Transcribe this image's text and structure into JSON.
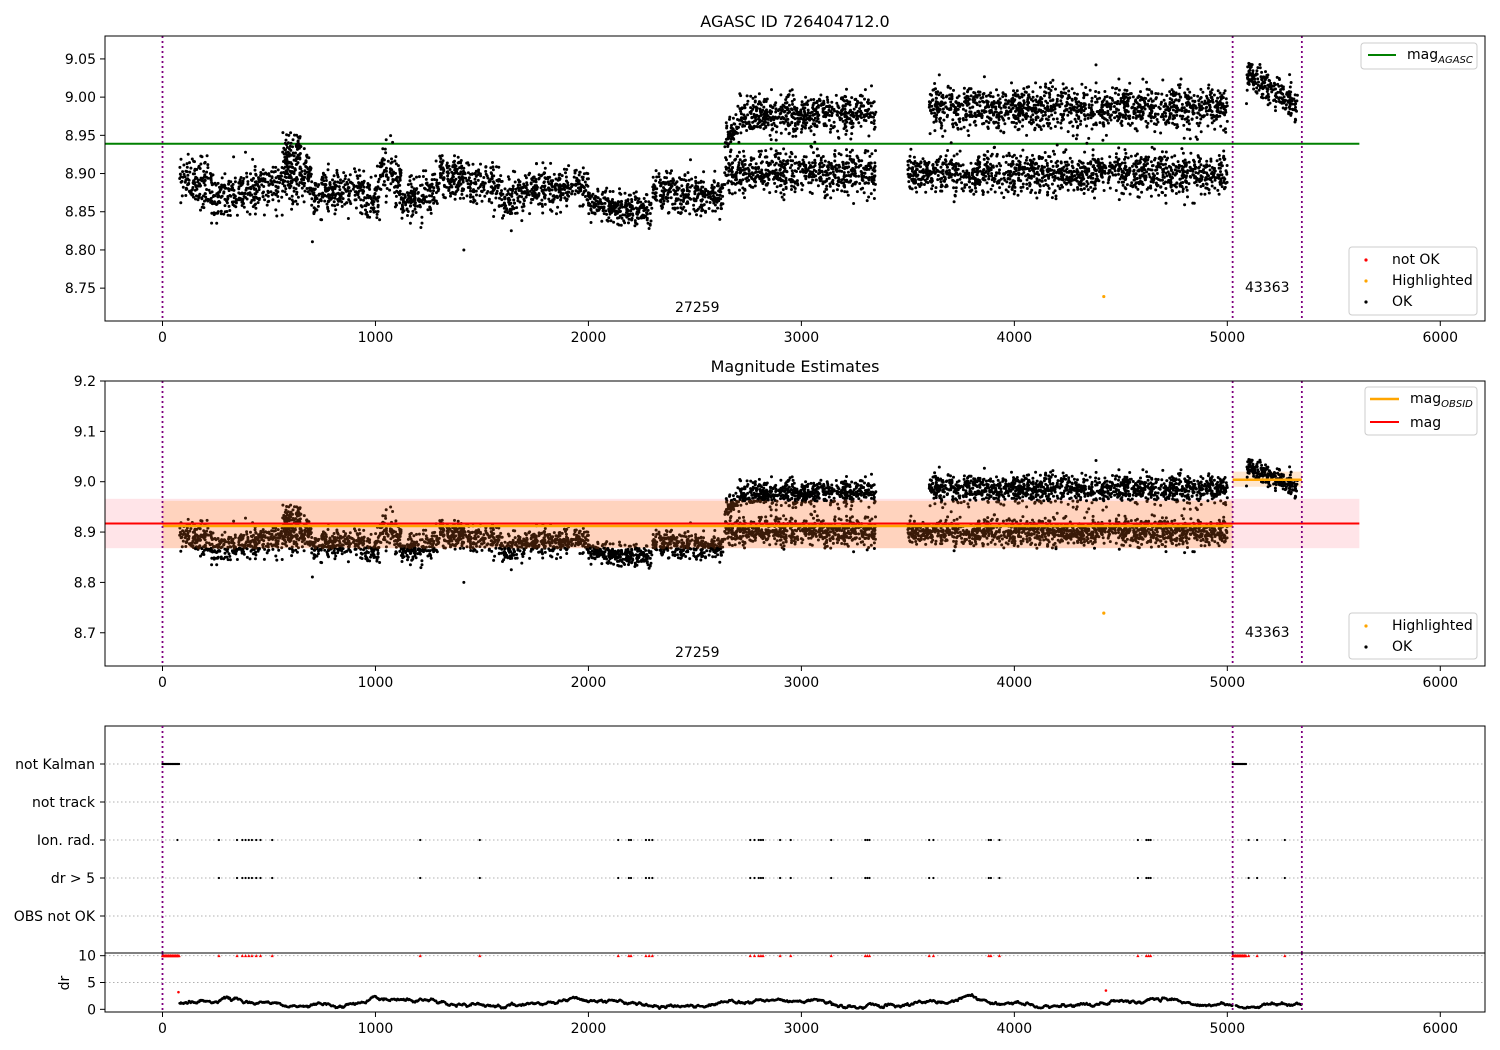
{
  "chart_data": [
    {
      "type": "scatter",
      "title": "AGASC ID 726404712.0",
      "xlim": [
        -270,
        6210
      ],
      "ylim": [
        8.707,
        9.08
      ],
      "xticks": [
        0,
        1000,
        2000,
        3000,
        4000,
        5000,
        6000
      ],
      "yticks": [
        8.75,
        8.8,
        8.85,
        8.9,
        8.95,
        9.0,
        9.05
      ],
      "ytick_labels": [
        "8.75",
        "8.80",
        "8.85",
        "8.90",
        "8.95",
        "9.00",
        "9.05"
      ],
      "grid": false,
      "legend_lines": {
        "placement": "top-right",
        "items": [
          {
            "label": "mag",
            "sub": "AGASC",
            "color": "#008000"
          }
        ]
      },
      "legend_points": {
        "placement": "bottom-right",
        "items": [
          {
            "label": "not OK",
            "color": "#ff0000"
          },
          {
            "label": "Highlighted",
            "color": "#ffa500"
          },
          {
            "label": "OK",
            "color": "#000000"
          }
        ]
      },
      "hlines": [
        {
          "name": "mag_AGASC",
          "y": 8.939,
          "x": [
            -270,
            5620
          ],
          "color": "#008000"
        }
      ],
      "vlines": [
        0,
        5025,
        5350
      ],
      "obs_labels": [
        {
          "text": "27259",
          "x": 2500,
          "y": 8.72
        },
        {
          "text": "43363",
          "x": 5185,
          "y": 8.747
        }
      ],
      "series": [
        {
          "kind": "ok",
          "segments": [
            {
              "x": [
                80,
                230
              ],
              "y": [
                8.9,
                8.88
              ],
              "sd": 0.017
            },
            {
              "x": [
                230,
                450
              ],
              "y": [
                8.87,
                8.88
              ],
              "sd": 0.013
            },
            {
              "x": [
                450,
                700
              ],
              "y": [
                8.88,
                8.9
              ],
              "sd": 0.015
            },
            {
              "x": [
                560,
                650
              ],
              "y": [
                8.92,
                8.93
              ],
              "sd": 0.012
            },
            {
              "x": [
                700,
                950
              ],
              "y": [
                8.87,
                8.88
              ],
              "sd": 0.014
            },
            {
              "x": [
                950,
                1020
              ],
              "y": [
                8.86,
                8.87
              ],
              "sd": 0.012
            },
            {
              "x": [
                1020,
                1120
              ],
              "y": [
                8.91,
                8.89
              ],
              "sd": 0.015
            },
            {
              "x": [
                1120,
                1300
              ],
              "y": [
                8.86,
                8.88
              ],
              "sd": 0.013
            },
            {
              "x": [
                1300,
                1600
              ],
              "y": [
                8.9,
                8.88
              ],
              "sd": 0.013
            },
            {
              "x": [
                1600,
                1750
              ],
              "y": [
                8.86,
                8.89
              ],
              "sd": 0.013
            },
            {
              "x": [
                1750,
                2000
              ],
              "y": [
                8.88,
                8.88
              ],
              "sd": 0.012
            },
            {
              "x": [
                2000,
                2300
              ],
              "y": [
                8.86,
                8.85
              ],
              "sd": 0.01
            },
            {
              "x": [
                2300,
                2640
              ],
              "y": [
                8.88,
                8.87
              ],
              "sd": 0.012
            },
            {
              "x": [
                2640,
                3350
              ],
              "y": [
                8.9,
                8.9
              ],
              "sd": 0.012
            },
            {
              "x": [
                2640,
                2700
              ],
              "y": [
                8.95,
                8.96
              ],
              "sd": 0.008
            },
            {
              "x": [
                2700,
                3350
              ],
              "y": [
                8.975,
                8.98
              ],
              "sd": 0.012
            },
            {
              "x": [
                3500,
                5000
              ],
              "y": [
                8.9,
                8.9
              ],
              "sd": 0.012
            },
            {
              "x": [
                3600,
                5000
              ],
              "y": [
                8.985,
                8.985
              ],
              "sd": 0.013
            },
            {
              "x": [
                5090,
                5330
              ],
              "y": [
                9.03,
                8.99
              ],
              "sd": 0.01
            }
          ]
        },
        {
          "kind": "isolated",
          "points": [
            {
              "x": 1415,
              "y": 8.8,
              "color": "#000000"
            }
          ]
        },
        {
          "kind": "highlighted",
          "points": [
            {
              "x": 4420,
              "y": 8.739,
              "color": "#ffa500"
            }
          ]
        }
      ]
    },
    {
      "type": "scatter",
      "title": "Magnitude Estimates",
      "xlim": [
        -270,
        6210
      ],
      "ylim": [
        8.634,
        9.2
      ],
      "xticks": [
        0,
        1000,
        2000,
        3000,
        4000,
        5000,
        6000
      ],
      "yticks": [
        8.7,
        8.8,
        8.9,
        9.0,
        9.1,
        9.2
      ],
      "ytick_labels": [
        "8.7",
        "8.8",
        "8.9",
        "9.0",
        "9.1",
        "9.2"
      ],
      "grid": false,
      "legend_lines": {
        "placement": "top-right",
        "items": [
          {
            "label": "mag",
            "sub": "OBSID",
            "color": "#ffa500"
          },
          {
            "label": "mag",
            "sub": "",
            "color": "#ff0000"
          }
        ]
      },
      "legend_points": {
        "placement": "bottom-right",
        "items": [
          {
            "label": "Highlighted",
            "color": "#ffa500"
          },
          {
            "label": "OK",
            "color": "#000000"
          }
        ]
      },
      "bands": [
        {
          "x": [
            -270,
            5620
          ],
          "y": [
            8.868,
            8.966
          ],
          "color": "#ff7a8a",
          "opacity": 0.2
        },
        {
          "x": [
            0,
            5025
          ],
          "y": [
            8.868,
            8.962
          ],
          "color": "#ffa040",
          "opacity": 0.25
        },
        {
          "x": [
            5025,
            5350
          ],
          "y": [
            8.99,
            9.02
          ],
          "color": "#ffa040",
          "opacity": 0.25
        }
      ],
      "hlines": [
        {
          "name": "mag",
          "y": 8.917,
          "x": [
            -270,
            5620
          ],
          "color": "#ff0000"
        },
        {
          "name": "mag_OBSID_1",
          "y": 8.912,
          "x": [
            0,
            5025
          ],
          "color": "#ffa500"
        },
        {
          "name": "mag_OBSID_2",
          "y": 9.004,
          "x": [
            5025,
            5350
          ],
          "color": "#ffa500"
        }
      ],
      "vlines": [
        0,
        5025,
        5350
      ],
      "obs_labels": [
        {
          "text": "27259",
          "x": 2500,
          "y": 8.654
        },
        {
          "text": "43363",
          "x": 5185,
          "y": 8.694
        }
      ],
      "series_from": 0
    },
    {
      "type": "scatter",
      "title": "",
      "xlim": [
        -270,
        6210
      ],
      "flags": [
        "not Kalman",
        "not track",
        "Ion. rad.",
        "dr > 5",
        "OBS not OK"
      ],
      "flag_points": {
        "not Kalman": [
          [
            0,
            80
          ],
          [
            5025,
            5090
          ]
        ],
        "not track": [],
        "Ion. rad.": [
          70,
          265,
          350,
          375,
          390,
          405,
          420,
          440,
          460,
          515,
          1210,
          1490,
          2140,
          2190,
          2200,
          2270,
          2285,
          2300,
          2760,
          2780,
          2800,
          2810,
          2820,
          2900,
          2950,
          3140,
          3300,
          3310,
          3320,
          3600,
          3620,
          3880,
          3890,
          3930,
          4580,
          4620,
          4630,
          4640,
          5100,
          5140,
          5270
        ],
        "dr > 5": [
          265,
          350,
          375,
          390,
          405,
          420,
          440,
          460,
          515,
          1210,
          1490,
          2140,
          2190,
          2200,
          2270,
          2285,
          2300,
          2760,
          2780,
          2800,
          2810,
          2820,
          2900,
          2950,
          3140,
          3300,
          3310,
          3320,
          3600,
          3620,
          3880,
          3890,
          3930,
          4580,
          4620,
          4630,
          4640,
          5100,
          5140,
          5270
        ],
        "OBS not OK": []
      },
      "dr_axis": {
        "ylabel": "dr",
        "ylim": [
          -0.5,
          10.5
        ],
        "yticks": [
          0,
          5,
          10
        ],
        "ytick_labels": [
          "0",
          "5",
          "10"
        ],
        "clip_value": 10,
        "clip_color": "#ff0000",
        "outliers": [
          {
            "x": 75,
            "y": 3.2
          },
          {
            "x": 4430,
            "y": 3.5
          }
        ]
      }
    }
  ]
}
